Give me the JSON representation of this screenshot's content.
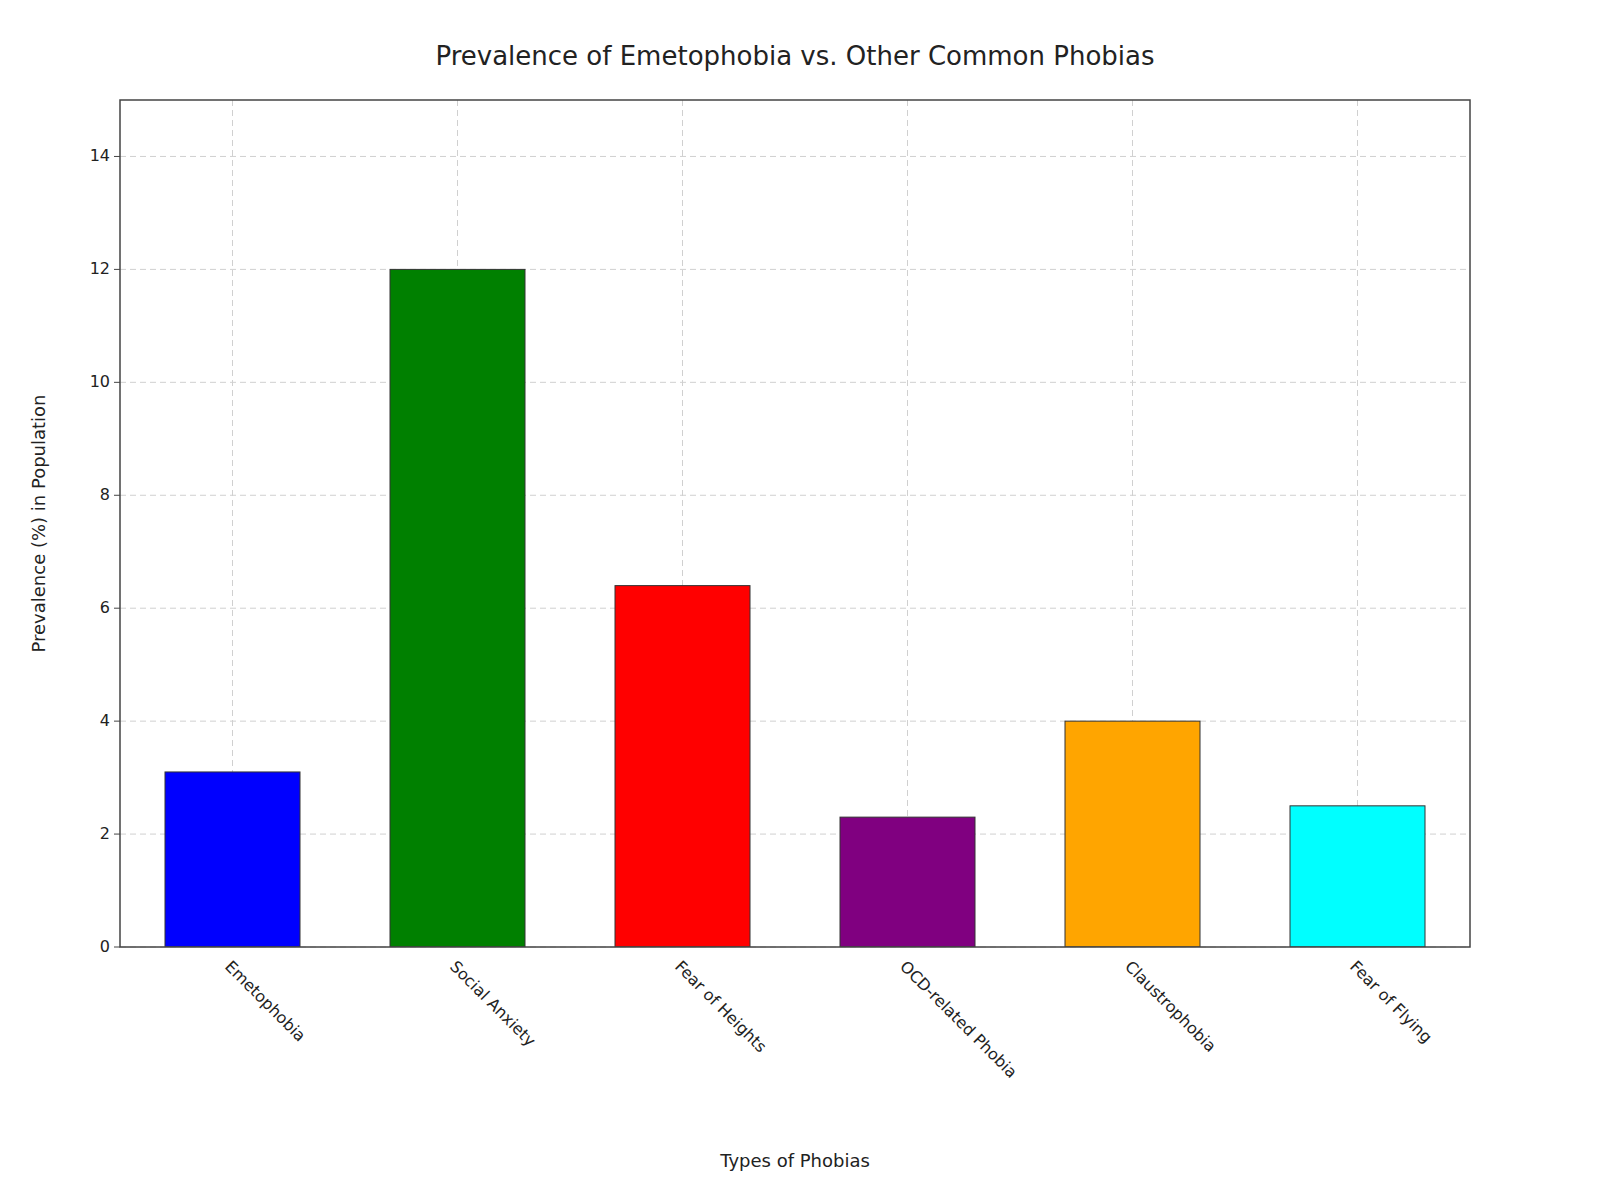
{
  "chart_data": {
    "type": "bar",
    "title": "Prevalence of Emetophobia vs. Other Common Phobias",
    "xlabel": "Types of Phobias",
    "ylabel": "Prevalence (%) in Population",
    "categories": [
      "Emetophobia",
      "Social Anxiety",
      "Fear of Heights",
      "OCD-related Phobia",
      "Claustrophobia",
      "Fear of Flying"
    ],
    "values": [
      3.1,
      12.0,
      6.4,
      2.3,
      4.0,
      2.5
    ],
    "colors": [
      "#0000ff",
      "#008000",
      "#ff0000",
      "#800080",
      "#ffa500",
      "#00ffff"
    ],
    "ylim": [
      0,
      15
    ],
    "yticks": [
      0,
      2,
      4,
      6,
      8,
      10,
      12,
      14
    ],
    "grid": true
  }
}
